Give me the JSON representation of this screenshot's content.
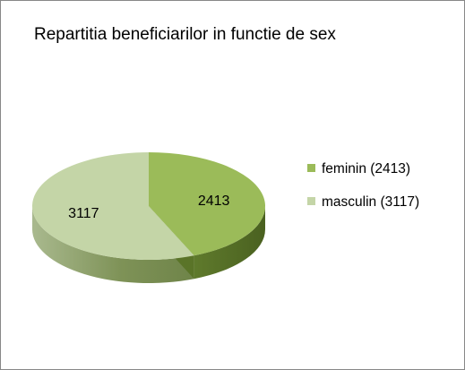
{
  "chart_data": {
    "type": "pie",
    "title": "Repartitia beneficiarilor in functie de sex",
    "three_d": true,
    "legend_position": "right",
    "slices": [
      {
        "label": "2413",
        "legend": "feminin (2413)",
        "value": 2413,
        "color": "#9bbb59"
      },
      {
        "label": "3117",
        "legend": "masculin (3117)",
        "value": 3117,
        "color": "#c4d5a7"
      }
    ]
  }
}
